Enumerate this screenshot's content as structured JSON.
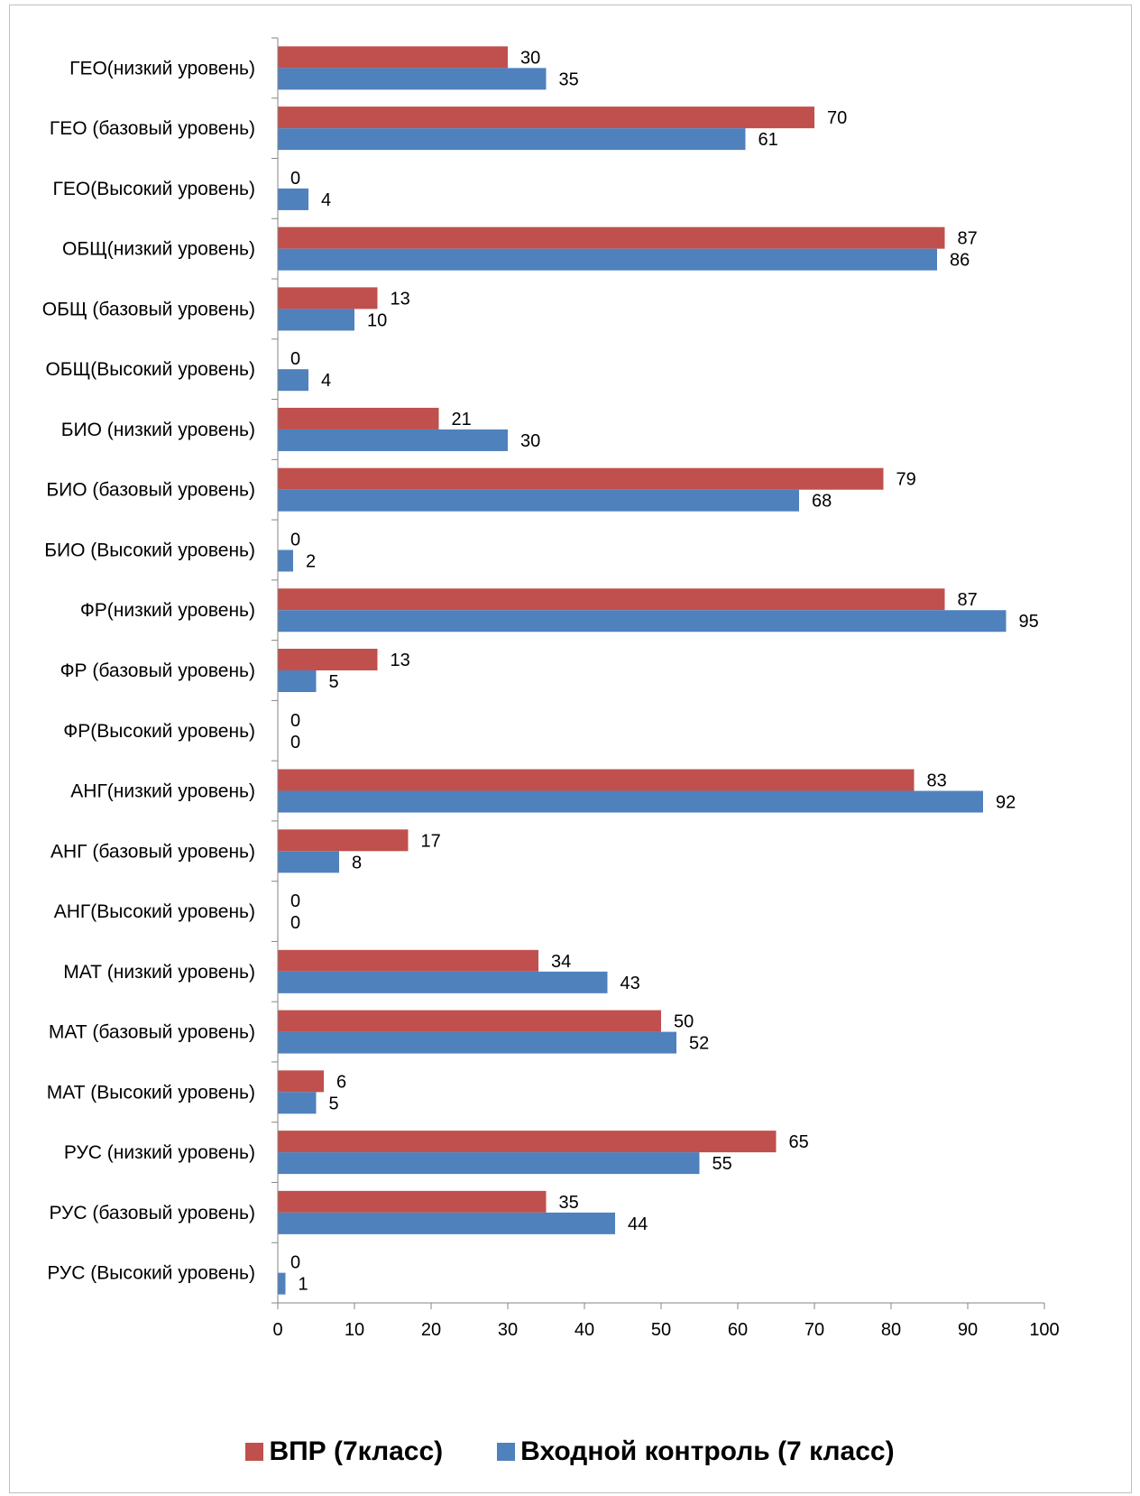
{
  "chart_data": {
    "type": "bar",
    "orientation": "horizontal",
    "categories": [
      "ГЕО(низкий уровень)",
      "ГЕО (базовый уровень)",
      "ГЕО(Высокий уровень)",
      "ОБЩ(низкий уровень)",
      "ОБЩ (базовый уровень)",
      "ОБЩ(Высокий уровень)",
      "БИО (низкий уровень)",
      "БИО (базовый уровень)",
      "БИО (Высокий уровень)",
      "ФР(низкий уровень)",
      "ФР (базовый уровень)",
      "ФР(Высокий уровень)",
      "АНГ(низкий уровень)",
      "АНГ (базовый уровень)",
      "АНГ(Высокий уровень)",
      "МАТ (низкий уровень)",
      "МАТ (базовый уровень)",
      "МАТ (Высокий уровень)",
      "РУС (низкий уровень)",
      "РУС (базовый уровень)",
      "РУС (Высокий уровень)"
    ],
    "series": [
      {
        "name": "ВПР (7класс)",
        "color": "#c0504d",
        "values": [
          30,
          70,
          0,
          87,
          13,
          0,
          21,
          79,
          0,
          87,
          13,
          0,
          83,
          17,
          0,
          34,
          50,
          6,
          65,
          35,
          0
        ]
      },
      {
        "name": "Входной контроль (7 класс)",
        "color": "#4f81bd",
        "values": [
          35,
          61,
          4,
          86,
          10,
          4,
          30,
          68,
          2,
          95,
          5,
          0,
          92,
          8,
          0,
          43,
          52,
          5,
          55,
          44,
          1
        ]
      }
    ],
    "xlim": [
      0,
      100
    ],
    "xticks": [
      0,
      10,
      20,
      30,
      40,
      50,
      60,
      70,
      80,
      90,
      100
    ],
    "grid": false,
    "legend_position": "bottom"
  }
}
